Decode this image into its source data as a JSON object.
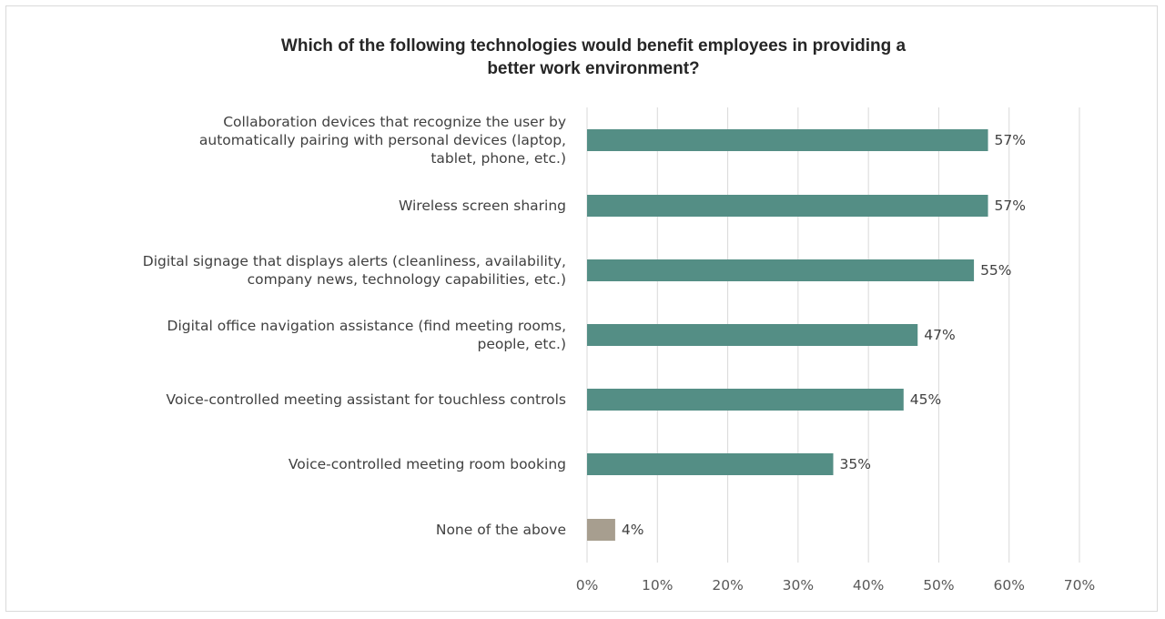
{
  "chart_data": {
    "type": "bar",
    "orientation": "horizontal",
    "title": "Which of the following technologies would benefit employees in providing a better work environment?",
    "title_lines": [
      "Which of the following technologies would benefit employees in providing a",
      "better work environment?"
    ],
    "categories": [
      [
        "Collaboration devices that recognize the user by",
        "automatically pairing with personal devices (laptop,",
        "tablet, phone, etc.)"
      ],
      [
        "Wireless screen sharing"
      ],
      [
        "Digital signage that displays alerts (cleanliness, availability,",
        "company news, technology capabilities, etc.)"
      ],
      [
        "Digital office navigation assistance (find meeting rooms,",
        "people, etc.)"
      ],
      [
        "Voice-controlled meeting assistant for touchless controls"
      ],
      [
        "Voice-controlled meeting room booking"
      ],
      [
        "None of the above"
      ]
    ],
    "values": [
      57,
      57,
      55,
      47,
      45,
      35,
      4
    ],
    "data_labels": [
      "57%",
      "57%",
      "55%",
      "47%",
      "45%",
      "35%",
      "4%"
    ],
    "bar_colors": [
      "#548e85",
      "#548e85",
      "#548e85",
      "#548e85",
      "#548e85",
      "#548e85",
      "#a79e8f"
    ],
    "xlim": [
      0,
      70
    ],
    "x_ticks": [
      0,
      10,
      20,
      30,
      40,
      50,
      60,
      70
    ],
    "x_tick_labels": [
      "0%",
      "10%",
      "20%",
      "30%",
      "40%",
      "50%",
      "60%",
      "70%"
    ],
    "grid": true,
    "legend": "none"
  }
}
